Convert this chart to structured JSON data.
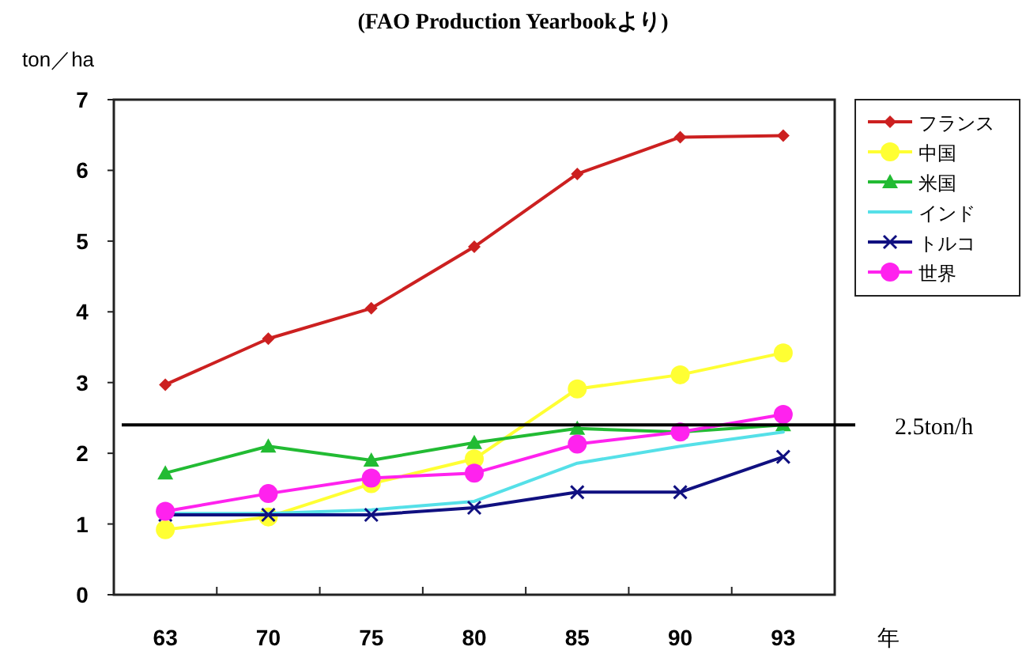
{
  "chart_data": {
    "type": "line",
    "title": "(FAO Production Yearbookより)",
    "ylabel": "ton／ha",
    "xlabel": "年",
    "categories": [
      "63",
      "70",
      "75",
      "80",
      "85",
      "90",
      "93"
    ],
    "ylim": [
      0,
      7
    ],
    "yticks": [
      0,
      1,
      2,
      3,
      4,
      5,
      6,
      7
    ],
    "grid": false,
    "legend": "top right",
    "line_style": "solid",
    "series": [
      {
        "name": "フランス",
        "color": "#cc2020",
        "marker": "diamond",
        "values": [
          2.97,
          3.62,
          4.05,
          4.92,
          5.95,
          6.47,
          6.49
        ]
      },
      {
        "name": "中国",
        "color": "#ffff33",
        "marker": "circle",
        "values": [
          0.92,
          1.1,
          1.57,
          1.92,
          2.91,
          3.11,
          3.42
        ]
      },
      {
        "name": "米国",
        "color": "#22bb33",
        "marker": "triangle",
        "values": [
          1.72,
          2.1,
          1.9,
          2.15,
          2.35,
          2.3,
          2.4
        ]
      },
      {
        "name": "インド",
        "color": "#55e0e8",
        "marker": "none",
        "values": [
          1.15,
          1.15,
          1.2,
          1.32,
          1.86,
          2.1,
          2.3
        ]
      },
      {
        "name": "トルコ",
        "color": "#101080",
        "marker": "cross",
        "values": [
          1.13,
          1.13,
          1.13,
          1.23,
          1.45,
          1.45,
          1.95
        ]
      },
      {
        "name": "世界",
        "color": "#ff22ee",
        "marker": "circle",
        "values": [
          1.18,
          1.43,
          1.65,
          1.72,
          2.13,
          2.3,
          2.55
        ]
      }
    ],
    "ref_lines": [
      {
        "axis": "y",
        "value": 2.4,
        "label": "2.5ton/h",
        "color": "#000000"
      }
    ]
  }
}
